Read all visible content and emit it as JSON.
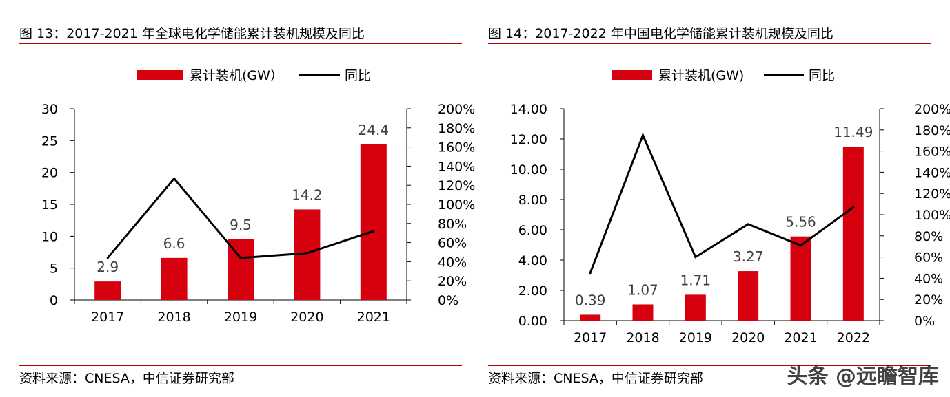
{
  "panels": [
    {
      "figure_title": "图 13：2017-2021 年全球电化学储能累计装机规模及同比",
      "source": "资料来源：CNESA，中信证券研究部"
    },
    {
      "figure_title": "图 14：2017-2022 年中国电化学储能累计装机规模及同比",
      "source": "资料来源：CNESA，中信证券研究部"
    }
  ],
  "watermark": "头条 @远瞻智库",
  "colors": {
    "bar": "#d7000f",
    "line": "#000000",
    "rule": "#c00000",
    "label": "#404040"
  },
  "chart_data": [
    {
      "type": "bar+line",
      "categories": [
        "2017",
        "2018",
        "2019",
        "2020",
        "2021"
      ],
      "series": [
        {
          "name": "累计装机(GW）",
          "type": "bar",
          "axis": "left",
          "values": [
            2.9,
            6.6,
            9.5,
            14.2,
            24.4
          ],
          "labels": [
            "2.9",
            "6.6",
            "9.5",
            "14.2",
            "24.4"
          ]
        },
        {
          "name": "同比",
          "type": "line",
          "axis": "right",
          "values": [
            44,
            127,
            44,
            49,
            72
          ]
        }
      ],
      "left_axis": {
        "min": 0,
        "max": 30,
        "ticks": [
          "0",
          "5",
          "10",
          "15",
          "20",
          "25",
          "30"
        ]
      },
      "right_axis": {
        "min": 0,
        "max": 200,
        "ticks": [
          "0%",
          "20%",
          "40%",
          "60%",
          "80%",
          "100%",
          "120%",
          "140%",
          "160%",
          "180%",
          "200%"
        ]
      },
      "legend_position": "top-center",
      "grid": false
    },
    {
      "type": "bar+line",
      "categories": [
        "2017",
        "2018",
        "2019",
        "2020",
        "2021",
        "2022"
      ],
      "series": [
        {
          "name": "累计装机(GW)",
          "type": "bar",
          "axis": "left",
          "values": [
            0.39,
            1.07,
            1.71,
            3.27,
            5.56,
            11.49
          ],
          "labels": [
            "0.39",
            "1.07",
            "1.71",
            "3.27",
            "5.56",
            "11.49"
          ]
        },
        {
          "name": "同比",
          "type": "line",
          "axis": "right",
          "values": [
            45,
            175,
            60,
            91,
            71,
            107
          ]
        }
      ],
      "left_axis": {
        "min": 0,
        "max": 14,
        "ticks": [
          "0.00",
          "2.00",
          "4.00",
          "6.00",
          "8.00",
          "10.00",
          "12.00",
          "14.00"
        ]
      },
      "right_axis": {
        "min": 0,
        "max": 200,
        "ticks": [
          "0%",
          "20%",
          "40%",
          "60%",
          "80%",
          "100%",
          "120%",
          "140%",
          "160%",
          "180%",
          "200%"
        ]
      },
      "legend_position": "top-center",
      "grid": false
    }
  ]
}
